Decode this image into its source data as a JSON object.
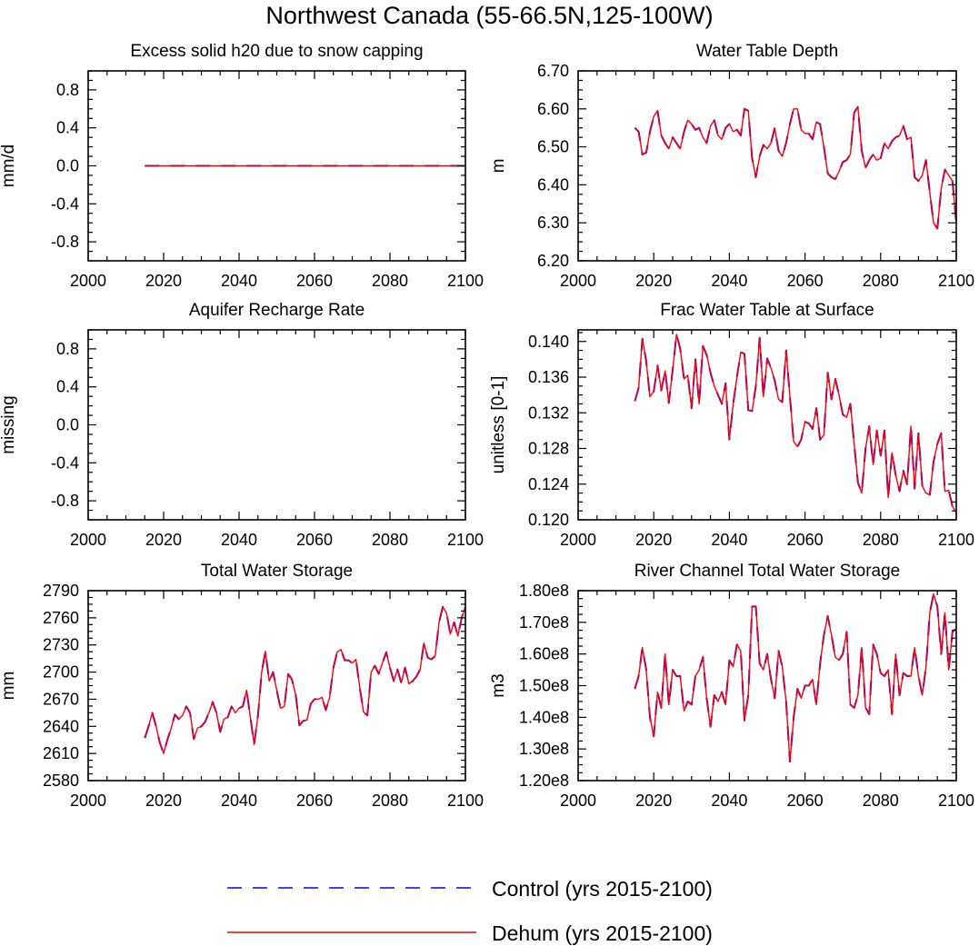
{
  "title": "Northwest Canada (55-66.5N,125-100W)",
  "legend": [
    {
      "label": "Control (yrs 2015-2100)",
      "color": "#0000ff",
      "dash": "dashed"
    },
    {
      "label": "Dehum (yrs 2015-2100)",
      "color": "#ff0000",
      "dash": "solid"
    }
  ],
  "chart_data": [
    {
      "type": "line",
      "title": "Excess solid h20 due to snow capping",
      "ylabel": "mm/d",
      "xlim": [
        2000,
        2100
      ],
      "ylim": [
        -1.0,
        1.0
      ],
      "xticks": [
        2000,
        2020,
        2040,
        2060,
        2080,
        2100
      ],
      "yticks": [
        -0.8,
        -0.4,
        0.0,
        0.4,
        0.8
      ],
      "yticklabels": [
        "-0.8",
        "-0.4",
        "0.0",
        "0.4",
        "0.8"
      ],
      "series": [
        {
          "name": "Control (yrs 2015-2100)",
          "x": [
            2015,
            2100
          ],
          "values": [
            0.0,
            0.0
          ]
        },
        {
          "name": "Dehum (yrs 2015-2100)",
          "x": [
            2015,
            2100
          ],
          "values": [
            0.0,
            0.0
          ]
        }
      ]
    },
    {
      "type": "line",
      "title": "Water Table Depth",
      "ylabel": "m",
      "xlim": [
        2000,
        2100
      ],
      "ylim": [
        6.2,
        6.7
      ],
      "xticks": [
        2000,
        2020,
        2040,
        2060,
        2080,
        2100
      ],
      "yticks": [
        6.2,
        6.3,
        6.4,
        6.5,
        6.6,
        6.7
      ],
      "yticklabels": [
        "6.20",
        "6.30",
        "6.40",
        "6.50",
        "6.60",
        "6.70"
      ],
      "x_start": 2015,
      "series": [
        {
          "name": "Control (yrs 2015-2100)",
          "values": [
            6.55,
            6.54,
            6.48,
            6.485,
            6.54,
            6.58,
            6.595,
            6.53,
            6.51,
            6.495,
            6.525,
            6.51,
            6.495,
            6.54,
            6.57,
            6.56,
            6.545,
            6.55,
            6.525,
            6.51,
            6.555,
            6.57,
            6.53,
            6.52,
            6.55,
            6.56,
            6.54,
            6.545,
            6.53,
            6.6,
            6.595,
            6.47,
            6.42,
            6.475,
            6.505,
            6.495,
            6.51,
            6.55,
            6.49,
            6.475,
            6.51,
            6.56,
            6.6,
            6.6,
            6.545,
            6.535,
            6.535,
            6.52,
            6.565,
            6.56,
            6.5,
            6.43,
            6.42,
            6.415,
            6.435,
            6.46,
            6.465,
            6.48,
            6.59,
            6.605,
            6.49,
            6.445,
            6.465,
            6.48,
            6.465,
            6.47,
            6.51,
            6.495,
            6.515,
            6.525,
            6.53,
            6.555,
            6.52,
            6.525,
            6.42,
            6.41,
            6.425,
            6.465,
            6.38,
            6.3,
            6.285,
            6.39,
            6.44,
            6.425,
            6.41,
            6.3
          ]
        },
        {
          "name": "Dehum (yrs 2015-2100)",
          "values": [
            6.55,
            6.54,
            6.48,
            6.485,
            6.54,
            6.58,
            6.595,
            6.53,
            6.51,
            6.495,
            6.525,
            6.51,
            6.495,
            6.54,
            6.57,
            6.56,
            6.545,
            6.55,
            6.525,
            6.51,
            6.555,
            6.57,
            6.53,
            6.52,
            6.55,
            6.56,
            6.54,
            6.545,
            6.53,
            6.6,
            6.595,
            6.47,
            6.42,
            6.475,
            6.505,
            6.495,
            6.51,
            6.55,
            6.49,
            6.475,
            6.51,
            6.56,
            6.6,
            6.6,
            6.545,
            6.535,
            6.535,
            6.52,
            6.565,
            6.56,
            6.5,
            6.43,
            6.42,
            6.415,
            6.435,
            6.46,
            6.465,
            6.48,
            6.59,
            6.605,
            6.49,
            6.445,
            6.465,
            6.48,
            6.465,
            6.47,
            6.51,
            6.495,
            6.515,
            6.525,
            6.53,
            6.555,
            6.52,
            6.525,
            6.42,
            6.41,
            6.425,
            6.465,
            6.38,
            6.3,
            6.285,
            6.39,
            6.44,
            6.425,
            6.41,
            6.3
          ]
        }
      ]
    },
    {
      "type": "line",
      "title": "Aquifer Recharge Rate",
      "ylabel": "missing",
      "xlim": [
        2000,
        2100
      ],
      "ylim": [
        -1.0,
        1.0
      ],
      "xticks": [
        2000,
        2020,
        2040,
        2060,
        2080,
        2100
      ],
      "yticks": [
        -0.8,
        -0.4,
        0.0,
        0.4,
        0.8
      ],
      "yticklabels": [
        "-0.8",
        "-0.4",
        "0.0",
        "0.4",
        "0.8"
      ],
      "series": []
    },
    {
      "type": "line",
      "title": "Frac Water Table at Surface",
      "ylabel": "unitless [0-1]",
      "xlim": [
        2000,
        2100
      ],
      "ylim": [
        0.12,
        0.1413
      ],
      "xticks": [
        2000,
        2020,
        2040,
        2060,
        2080,
        2100
      ],
      "yticks": [
        0.12,
        0.124,
        0.128,
        0.132,
        0.136,
        0.14
      ],
      "yticklabels": [
        "0.120",
        "0.124",
        "0.128",
        "0.132",
        "0.136",
        "0.140"
      ],
      "x_start": 2015,
      "series": [
        {
          "name": "Control (yrs 2015-2100)",
          "values": [
            0.1333,
            0.1348,
            0.1403,
            0.1378,
            0.1338,
            0.1344,
            0.1373,
            0.1345,
            0.1367,
            0.1331,
            0.1368,
            0.1408,
            0.1392,
            0.1358,
            0.1362,
            0.1325,
            0.138,
            0.133,
            0.1395,
            0.1385,
            0.1365,
            0.135,
            0.134,
            0.133,
            0.1353,
            0.129,
            0.133,
            0.136,
            0.1388,
            0.1386,
            0.1323,
            0.1322,
            0.135,
            0.1404,
            0.1338,
            0.1381,
            0.137,
            0.1356,
            0.1335,
            0.1332,
            0.139,
            0.1338,
            0.1288,
            0.1282,
            0.129,
            0.131,
            0.1308,
            0.1302,
            0.1325,
            0.129,
            0.1295,
            0.1365,
            0.1335,
            0.1358,
            0.134,
            0.1318,
            0.1315,
            0.133,
            0.1285,
            0.1242,
            0.123,
            0.128,
            0.1305,
            0.1262,
            0.13,
            0.1272,
            0.13,
            0.1225,
            0.1275,
            0.125,
            0.1232,
            0.1255,
            0.124,
            0.1305,
            0.1235,
            0.1297,
            0.1238,
            0.123,
            0.1228,
            0.1265,
            0.1285,
            0.1297,
            0.1232,
            0.1233,
            0.1215,
            0.1208
          ]
        },
        {
          "name": "Dehum (yrs 2015-2100)",
          "values": [
            0.1333,
            0.1348,
            0.1403,
            0.1378,
            0.1338,
            0.1344,
            0.1373,
            0.1345,
            0.1367,
            0.1331,
            0.1368,
            0.1408,
            0.1392,
            0.1358,
            0.1362,
            0.1325,
            0.138,
            0.133,
            0.1395,
            0.1385,
            0.1365,
            0.135,
            0.134,
            0.133,
            0.1353,
            0.129,
            0.133,
            0.136,
            0.1388,
            0.1386,
            0.1323,
            0.1322,
            0.135,
            0.1404,
            0.1338,
            0.1381,
            0.137,
            0.1356,
            0.1335,
            0.1332,
            0.139,
            0.1338,
            0.1288,
            0.1282,
            0.129,
            0.131,
            0.1308,
            0.1302,
            0.1325,
            0.129,
            0.1295,
            0.1365,
            0.1335,
            0.1358,
            0.134,
            0.1318,
            0.1315,
            0.133,
            0.1285,
            0.1242,
            0.123,
            0.128,
            0.1305,
            0.1262,
            0.13,
            0.1272,
            0.13,
            0.1225,
            0.1275,
            0.125,
            0.1232,
            0.1255,
            0.124,
            0.1305,
            0.1235,
            0.1297,
            0.1238,
            0.123,
            0.1228,
            0.1265,
            0.1285,
            0.1297,
            0.1232,
            0.1233,
            0.1215,
            0.1208
          ]
        }
      ]
    },
    {
      "type": "line",
      "title": "Total Water Storage",
      "ylabel": "mm",
      "xlim": [
        2000,
        2100
      ],
      "ylim": [
        2580,
        2790
      ],
      "xticks": [
        2000,
        2020,
        2040,
        2060,
        2080,
        2100
      ],
      "yticks": [
        2580,
        2610,
        2640,
        2670,
        2700,
        2730,
        2760,
        2790
      ],
      "yticklabels": [
        "2580",
        "2610",
        "2640",
        "2670",
        "2700",
        "2730",
        "2760",
        "2790"
      ],
      "x_start": 2015,
      "series": [
        {
          "name": "Control (yrs 2015-2100)",
          "values": [
            2627,
            2640,
            2655,
            2640,
            2622,
            2610,
            2625,
            2638,
            2653,
            2648,
            2652,
            2662,
            2655,
            2626,
            2638,
            2640,
            2645,
            2655,
            2667,
            2655,
            2634,
            2648,
            2650,
            2662,
            2655,
            2660,
            2662,
            2680,
            2650,
            2620,
            2652,
            2700,
            2723,
            2690,
            2700,
            2680,
            2660,
            2662,
            2698,
            2692,
            2675,
            2641,
            2646,
            2647,
            2665,
            2670,
            2670,
            2672,
            2658,
            2672,
            2705,
            2722,
            2725,
            2713,
            2713,
            2710,
            2714,
            2683,
            2656,
            2652,
            2700,
            2707,
            2698,
            2710,
            2722,
            2705,
            2690,
            2703,
            2688,
            2705,
            2687,
            2690,
            2695,
            2703,
            2732,
            2716,
            2714,
            2718,
            2755,
            2772,
            2765,
            2742,
            2755,
            2740,
            2760,
            2773
          ]
        },
        {
          "name": "Dehum (yrs 2015-2100)",
          "values": [
            2627,
            2640,
            2655,
            2640,
            2622,
            2610,
            2625,
            2638,
            2653,
            2648,
            2652,
            2662,
            2655,
            2626,
            2638,
            2640,
            2645,
            2655,
            2667,
            2655,
            2634,
            2648,
            2650,
            2662,
            2655,
            2660,
            2662,
            2680,
            2650,
            2620,
            2652,
            2700,
            2723,
            2690,
            2700,
            2680,
            2660,
            2662,
            2698,
            2692,
            2675,
            2641,
            2646,
            2647,
            2665,
            2670,
            2670,
            2672,
            2658,
            2672,
            2705,
            2722,
            2725,
            2713,
            2713,
            2710,
            2714,
            2683,
            2656,
            2652,
            2700,
            2707,
            2698,
            2710,
            2722,
            2705,
            2690,
            2703,
            2688,
            2705,
            2687,
            2690,
            2695,
            2703,
            2732,
            2716,
            2714,
            2718,
            2755,
            2772,
            2765,
            2742,
            2755,
            2740,
            2760,
            2773
          ]
        }
      ]
    },
    {
      "type": "line",
      "title": "River Channel Total Water Storage",
      "ylabel": "m3",
      "xlim": [
        2000,
        2100
      ],
      "ylim": [
        120000000.0,
        180000000.0
      ],
      "xticks": [
        2000,
        2020,
        2040,
        2060,
        2080,
        2100
      ],
      "yticks": [
        120000000.0,
        130000000.0,
        140000000.0,
        150000000.0,
        160000000.0,
        170000000.0,
        180000000.0
      ],
      "yticklabels": [
        "1.20e8",
        "1.30e8",
        "1.40e8",
        "1.50e8",
        "1.60e8",
        "1.70e8",
        "1.80e8"
      ],
      "x_start": 2015,
      "series": [
        {
          "name": "Control (yrs 2015-2100)",
          "values": [
            149000000.0,
            153000000.0,
            162000000.0,
            155000000.0,
            140000000.0,
            134000000.0,
            148000000.0,
            143000000.0,
            160000000.0,
            144000000.0,
            155000000.0,
            153000000.0,
            153000000.0,
            142000000.0,
            145000000.0,
            144000000.0,
            153000000.0,
            155000000.0,
            159000000.0,
            146000000.0,
            137000000.0,
            147000000.0,
            145000000.0,
            148000000.0,
            144000000.0,
            158000000.0,
            156000000.0,
            163000000.0,
            161000000.0,
            139000000.0,
            147000000.0,
            175000000.0,
            175000000.0,
            157000000.0,
            155000000.0,
            160000000.0,
            152000000.0,
            146000000.0,
            161000000.0,
            156000000.0,
            145000000.0,
            126000000.0,
            140000000.0,
            149000000.0,
            146000000.0,
            150000000.0,
            150000000.0,
            152000000.0,
            144000000.0,
            157000000.0,
            166000000.0,
            172000000.0,
            166000000.0,
            159000000.0,
            158000000.0,
            160000000.0,
            167000000.0,
            144000000.0,
            143000000.0,
            147000000.0,
            162000000.0,
            143000000.0,
            141000000.0,
            163000000.0,
            160000000.0,
            154000000.0,
            153000000.0,
            155000000.0,
            141000000.0,
            160000000.0,
            147000000.0,
            154000000.0,
            153000000.0,
            153000000.0,
            162000000.0,
            153000000.0,
            147000000.0,
            156000000.0,
            173000000.0,
            179000000.0,
            175000000.0,
            160000000.0,
            173000000.0,
            155000000.0,
            167000000.0,
            168000000.0
          ]
        },
        {
          "name": "Dehum (yrs 2015-2100)",
          "values": [
            149000000.0,
            153000000.0,
            162000000.0,
            155000000.0,
            140000000.0,
            134000000.0,
            148000000.0,
            143000000.0,
            160000000.0,
            144000000.0,
            155000000.0,
            153000000.0,
            153000000.0,
            142000000.0,
            145000000.0,
            144000000.0,
            153000000.0,
            155000000.0,
            159000000.0,
            146000000.0,
            137000000.0,
            147000000.0,
            145000000.0,
            148000000.0,
            144000000.0,
            158000000.0,
            156000000.0,
            163000000.0,
            161000000.0,
            139000000.0,
            147000000.0,
            175000000.0,
            175000000.0,
            157000000.0,
            155000000.0,
            160000000.0,
            152000000.0,
            146000000.0,
            161000000.0,
            156000000.0,
            145000000.0,
            126000000.0,
            140000000.0,
            149000000.0,
            146000000.0,
            150000000.0,
            150000000.0,
            152000000.0,
            144000000.0,
            157000000.0,
            166000000.0,
            172000000.0,
            166000000.0,
            159000000.0,
            158000000.0,
            160000000.0,
            167000000.0,
            144000000.0,
            143000000.0,
            147000000.0,
            162000000.0,
            143000000.0,
            141000000.0,
            163000000.0,
            160000000.0,
            154000000.0,
            153000000.0,
            155000000.0,
            141000000.0,
            160000000.0,
            147000000.0,
            154000000.0,
            153000000.0,
            153000000.0,
            162000000.0,
            153000000.0,
            147000000.0,
            156000000.0,
            173000000.0,
            179000000.0,
            175000000.0,
            160000000.0,
            173000000.0,
            155000000.0,
            167000000.0,
            168000000.0
          ]
        }
      ]
    }
  ]
}
